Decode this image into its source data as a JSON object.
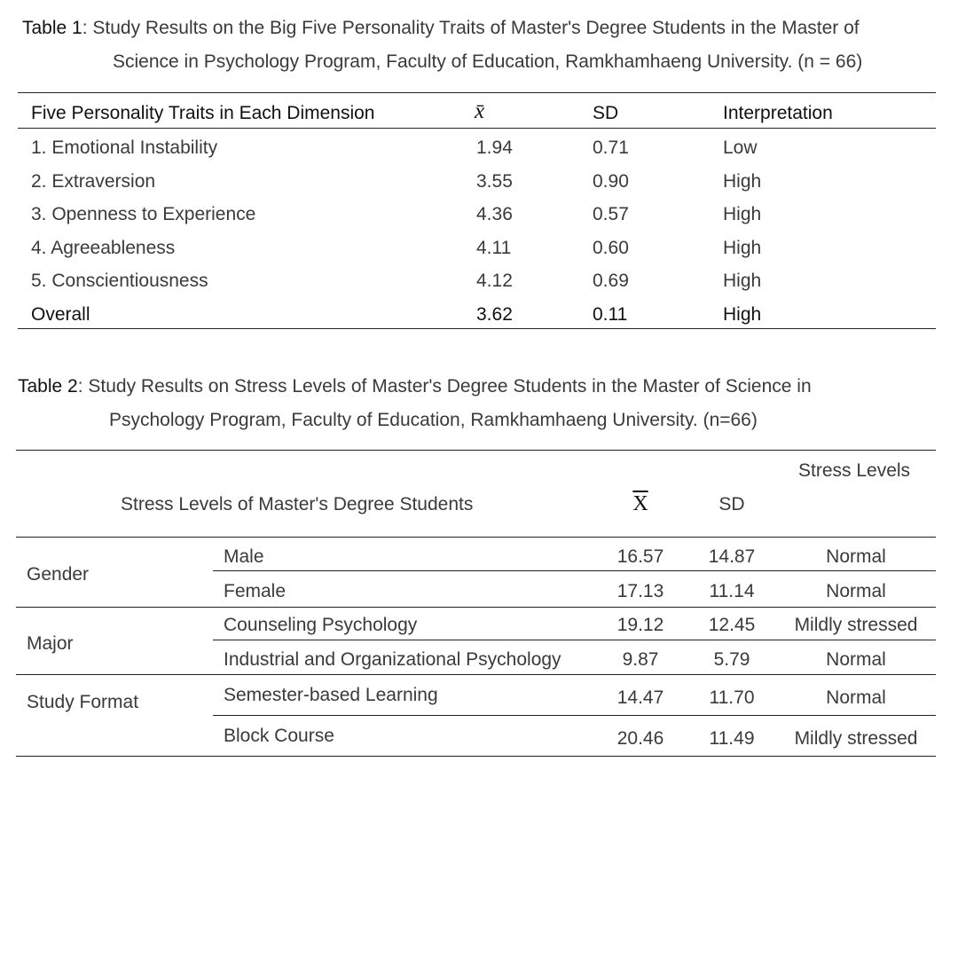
{
  "table1": {
    "label": "Table 1",
    "caption_line1": ":  Study Results on the Big Five Personality Traits of Master's Degree Students in the Master of",
    "caption_line2": "Science in Psychology Program, Faculty of Education, Ramkhamhaeng University. (n = 66)",
    "headers": [
      "Five Personality Traits in Each Dimension",
      "x̄",
      "SD",
      "Interpretation"
    ],
    "rows": [
      [
        "1. Emotional Instability",
        "1.94",
        "0.71",
        "Low"
      ],
      [
        "2. Extraversion",
        "3.55",
        "0.90",
        "High"
      ],
      [
        "3. Openness to Experience",
        "4.36",
        "0.57",
        "High"
      ],
      [
        "4. Agreeableness",
        "4.11",
        "0.60",
        "High"
      ],
      [
        "5. Conscientiousness",
        "4.12",
        "0.69",
        "High"
      ]
    ],
    "overall": [
      "Overall",
      "3.62",
      "0.11",
      "High"
    ]
  },
  "table2": {
    "label": "Table 2",
    "caption_line1": ":  Study Results on Stress Levels of Master's Degree Students in the Master of Science in",
    "caption_line2": "Psychology Program, Faculty of Education, Ramkhamhaeng University. (n=66)",
    "headers": [
      "Stress Levels of Master's Degree Students",
      "X",
      "SD",
      "Stress Levels"
    ],
    "groups": [
      "Gender",
      "Major",
      "Study Format"
    ],
    "rows": [
      [
        "Male",
        "16.57",
        "14.87",
        "Normal"
      ],
      [
        "Female",
        "17.13",
        "11.14",
        "Normal"
      ],
      [
        "Counseling Psychology",
        "19.12",
        "12.45",
        "Mildly stressed"
      ],
      [
        "Industrial and Organizational Psychology",
        "9.87",
        "5.79",
        "Normal"
      ],
      [
        "Semester-based Learning",
        "14.47",
        "11.70",
        "Normal"
      ],
      [
        "Block Course",
        "20.46",
        "11.49",
        "Mildly stressed"
      ]
    ]
  }
}
